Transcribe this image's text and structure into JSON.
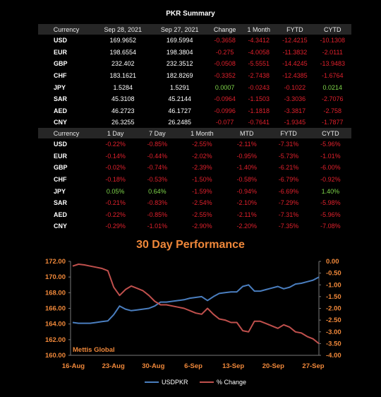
{
  "summary_title": "PKR Summary",
  "table1": {
    "headers": [
      "Currency",
      "Sep 28, 2021",
      "Sep 27, 2021",
      "Change",
      "1 Month",
      "FYTD",
      "CYTD"
    ],
    "rows": [
      [
        "USD",
        "169.9652",
        "169.5994",
        "-0.3658",
        "-4.3412",
        "-12.4215",
        "-10.1308"
      ],
      [
        "EUR",
        "198.6554",
        "198.3804",
        "-0.275",
        "-4.0058",
        "-11.3832",
        "-2.0111"
      ],
      [
        "GBP",
        "232.402",
        "232.3512",
        "-0.0508",
        "-5.5551",
        "-14.4245",
        "-13.9483"
      ],
      [
        "CHF",
        "183.1621",
        "182.8269",
        "-0.3352",
        "-2.7438",
        "-12.4385",
        "-1.6764"
      ],
      [
        "JPY",
        "1.5284",
        "1.5291",
        "0.0007",
        "-0.0243",
        "-0.1022",
        "0.0214"
      ],
      [
        "SAR",
        "45.3108",
        "45.2144",
        "-0.0964",
        "-1.1503",
        "-3.3036",
        "-2.7076"
      ],
      [
        "AED",
        "46.2723",
        "46.1727",
        "-0.0996",
        "-1.1818",
        "-3.3817",
        "-2.758"
      ],
      [
        "CNY",
        "26.3255",
        "26.2485",
        "-0.077",
        "-0.7641",
        "-1.9345",
        "-1.7877"
      ]
    ]
  },
  "table2": {
    "headers": [
      "Currency",
      "1 Day",
      "7 Day",
      "1 Month",
      "MTD",
      "FYTD",
      "CYTD"
    ],
    "rows": [
      [
        "USD",
        "-0.22%",
        "-0.85%",
        "-2.55%",
        "-2.11%",
        "-7.31%",
        "-5.96%"
      ],
      [
        "EUR",
        "-0.14%",
        "-0.44%",
        "-2.02%",
        "-0.95%",
        "-5.73%",
        "-1.01%"
      ],
      [
        "GBP",
        "-0.02%",
        "-0.74%",
        "-2.39%",
        "-1.40%",
        "-6.21%",
        "-6.00%"
      ],
      [
        "CHF",
        "-0.18%",
        "-0.53%",
        "-1.50%",
        "-0.58%",
        "-6.79%",
        "-0.92%"
      ],
      [
        "JPY",
        "0.05%",
        "0.64%",
        "-1.59%",
        "-0.94%",
        "-6.69%",
        "1.40%"
      ],
      [
        "SAR",
        "-0.21%",
        "-0.83%",
        "-2.54%",
        "-2.10%",
        "-7.29%",
        "-5.98%"
      ],
      [
        "AED",
        "-0.22%",
        "-0.85%",
        "-2.55%",
        "-2.11%",
        "-7.31%",
        "-5.96%"
      ],
      [
        "CNY",
        "-0.29%",
        "-1.01%",
        "-2.90%",
        "-2.20%",
        "-7.35%",
        "-7.08%"
      ]
    ]
  },
  "chart_data": {
    "type": "line",
    "title": "30 Day Performance",
    "watermark": "Mettis Global",
    "x_tick_labels": [
      "16-Aug",
      "23-Aug",
      "30-Aug",
      "6-Sep",
      "13-Sep",
      "20-Sep",
      "27-Sep"
    ],
    "y_left_ticks": [
      "160.00",
      "162.00",
      "164.00",
      "166.00",
      "168.00",
      "170.00",
      "172.00"
    ],
    "y_right_ticks": [
      "0.00",
      "-0.50",
      "-1.00",
      "-1.50",
      "-2.00",
      "-2.50",
      "-3.00",
      "-3.50",
      "-4.00"
    ],
    "ylim_left": [
      160,
      172
    ],
    "ylim_right": [
      -4,
      0
    ],
    "legend_position": "bottom",
    "series": [
      {
        "name": "USDPKR",
        "axis": "left",
        "color": "#4a7ebf",
        "values": [
          164.2,
          164.1,
          164.1,
          164.1,
          164.2,
          164.3,
          164.4,
          165.2,
          166.3,
          165.9,
          165.7,
          165.8,
          165.9,
          166.0,
          166.3,
          166.8,
          166.8,
          166.9,
          167.0,
          167.1,
          167.3,
          167.4,
          167.5,
          167.0,
          167.5,
          167.9,
          168.0,
          168.1,
          168.1,
          168.8,
          169.0,
          168.2,
          168.2,
          168.4,
          168.6,
          168.8,
          168.5,
          168.7,
          169.1,
          169.2,
          169.4,
          169.6,
          170.0
        ]
      },
      {
        "name": "% Change",
        "axis": "right",
        "color": "#c0504d",
        "values": [
          -0.2,
          -0.12,
          -0.15,
          -0.2,
          -0.25,
          -0.3,
          -0.4,
          -1.1,
          -1.45,
          -1.2,
          -1.05,
          -1.15,
          -1.25,
          -1.45,
          -1.7,
          -1.85,
          -1.85,
          -1.9,
          -1.95,
          -2.0,
          -2.1,
          -2.2,
          -2.25,
          -2.0,
          -2.25,
          -2.45,
          -2.5,
          -2.6,
          -2.6,
          -2.95,
          -3.0,
          -2.55,
          -2.55,
          -2.65,
          -2.75,
          -2.85,
          -2.7,
          -2.8,
          -3.0,
          -3.05,
          -3.2,
          -3.3,
          -3.5
        ]
      }
    ]
  }
}
